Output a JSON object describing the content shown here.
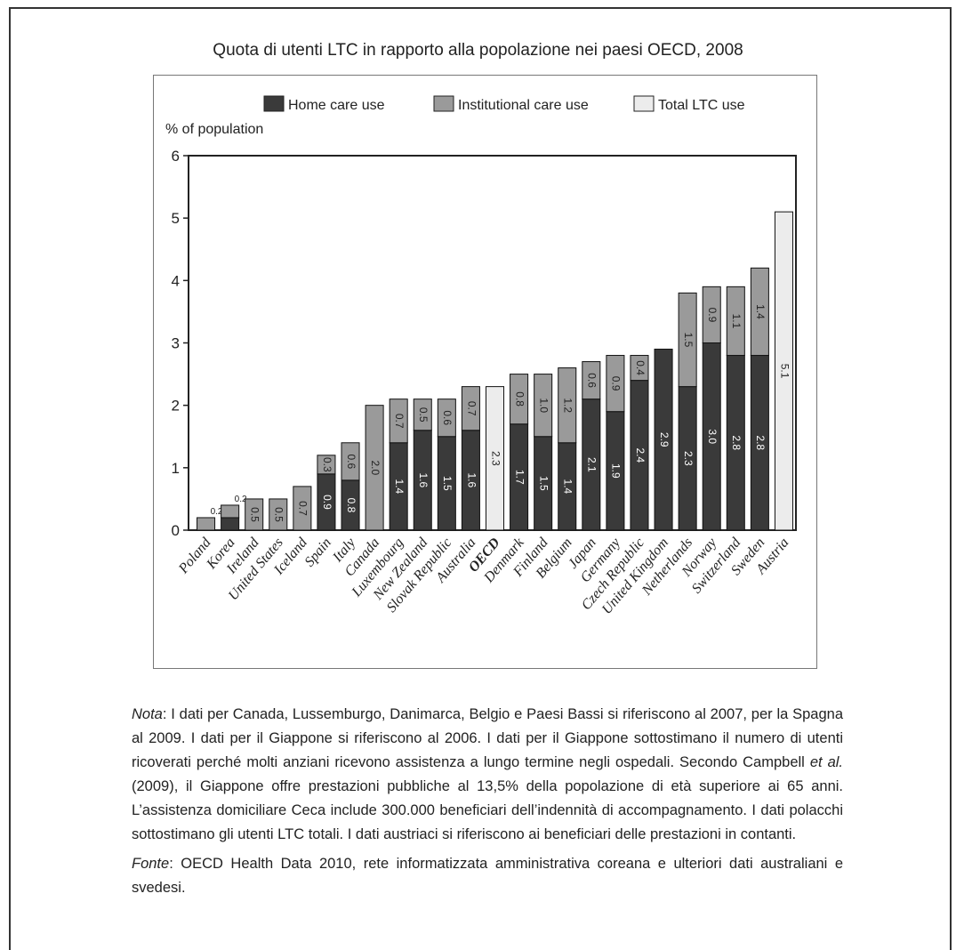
{
  "chart_data": {
    "type": "bar",
    "title": "Quota di utenti LTC in rapporto alla popolazione nei paesi OECD, 2008",
    "ylabel": "% of population",
    "ylim": [
      0,
      6
    ],
    "yticks": [
      "0",
      "1",
      "2",
      "3",
      "4",
      "5",
      "6"
    ],
    "legend": [
      {
        "name": "Home care use",
        "color": "#3a3a3a"
      },
      {
        "name": "Institutional care use",
        "color": "#9a9a9a"
      },
      {
        "name": "Total LTC use",
        "color": "#ececec"
      }
    ],
    "legend_position": "top",
    "categories": [
      "Poland",
      "Korea",
      "Ireland",
      "United States",
      "Iceland",
      "Spain",
      "Italy",
      "Canada",
      "Luxembourg",
      "New Zealand",
      "Slovak Republic",
      "Australia",
      "OECD",
      "Denmark",
      "Finland",
      "Belgium",
      "Japan",
      "Germany",
      "Czech Republic",
      "United Kingdom",
      "Netherlands",
      "Norway",
      "Switzerland",
      "Sweden",
      "Austria"
    ],
    "series": [
      {
        "name": "Home care use",
        "values": [
          0.0,
          0.2,
          null,
          null,
          null,
          0.9,
          0.8,
          null,
          1.4,
          1.6,
          1.5,
          1.6,
          null,
          1.7,
          1.5,
          1.4,
          2.1,
          1.9,
          2.4,
          2.9,
          2.3,
          3.0,
          2.8,
          2.8,
          null
        ]
      },
      {
        "name": "Institutional care use",
        "values": [
          0.2,
          0.2,
          0.5,
          0.5,
          0.7,
          0.3,
          0.6,
          2.0,
          0.7,
          0.5,
          0.6,
          0.7,
          null,
          0.8,
          1.0,
          1.2,
          0.6,
          0.9,
          0.4,
          null,
          1.5,
          0.9,
          1.1,
          1.4,
          null
        ]
      },
      {
        "name": "Total LTC use",
        "values": [
          null,
          null,
          null,
          null,
          null,
          null,
          null,
          null,
          null,
          null,
          null,
          null,
          2.3,
          null,
          null,
          null,
          null,
          null,
          null,
          null,
          null,
          null,
          null,
          null,
          5.1
        ]
      }
    ],
    "home_labels": [
      "",
      "",
      "",
      "",
      "",
      "0.9",
      "0.8",
      "",
      "1.4",
      "1.6",
      "1.5",
      "1.6",
      "",
      "1.7",
      "1.5",
      "1.4",
      "2.1",
      "1.9",
      "2.4",
      "2.9",
      "2.3",
      "3.0",
      "2.8",
      "2.8",
      ""
    ],
    "inst_labels": [
      "0.2",
      "0.2",
      "0.5",
      "0.5",
      "0.7",
      "0.3",
      "0.6",
      "2.0",
      "0.7",
      "0.5",
      "0.6",
      "0.7",
      "",
      "0.8",
      "1.0",
      "1.2",
      "0.6",
      "0.9",
      "0.4",
      "",
      "1.5",
      "0.9",
      "1.1",
      "1.4",
      ""
    ],
    "total_labels": [
      "",
      "",
      "",
      "",
      "",
      "",
      "",
      "",
      "",
      "",
      "",
      "",
      "2.3",
      "",
      "",
      "",
      "",
      "",
      "",
      "",
      "",
      "",
      "",
      "",
      "5.1"
    ],
    "bold_categories": [
      "OECD"
    ],
    "grid": false
  },
  "notes": {
    "nota_label": "Nota",
    "nota_text": ": I dati per Canada, Lussemburgo, Danimarca, Belgio e Paesi Bassi si riferiscono al 2007, per la Spagna al 2009. I dati per il Giappone si riferiscono al 2006. I dati per il Giappone sottostimano il numero di utenti ricoverati perché molti anziani ricevono assistenza a lungo termine negli ospedali. Secondo Campbell",
    "etal": "et al.",
    "nota_text2": "(2009), il Giappone offre prestazioni pubbliche al 13,5% della popolazione di età superiore ai 65 anni. L’assistenza domiciliare Ceca include 300.000 beneficiari dell’indennità di accompagnamento. I dati polacchi sottostimano gli utenti LTC totali. I dati austriaci si riferiscono ai beneficiari delle prestazioni in contanti.",
    "fonte_label": "Fonte",
    "fonte_text": ": OECD Health Data 2010, rete informatizzata amministrativa coreana e ulteriori dati australiani e svedesi."
  }
}
